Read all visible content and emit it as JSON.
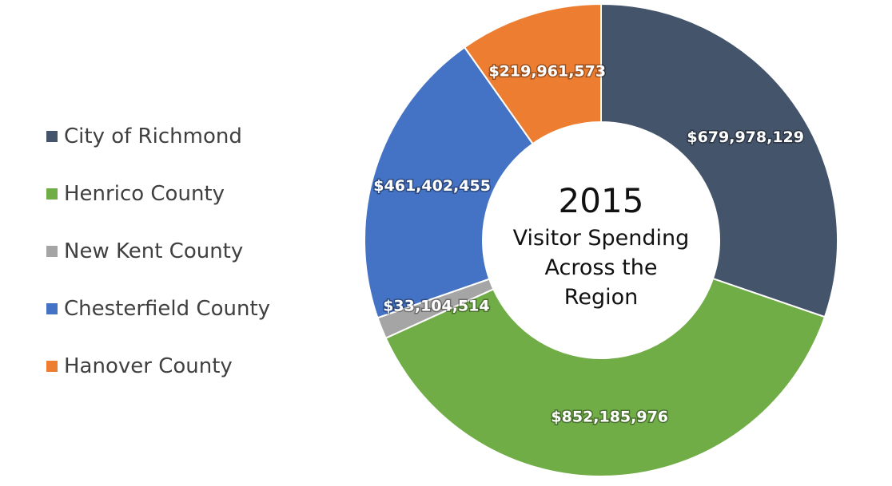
{
  "chart_data": {
    "type": "pie",
    "donut": true,
    "legend_position": "left",
    "center_title": "2015",
    "center_subtitle_lines": [
      "Visitor Spending",
      "Across the",
      "Region"
    ],
    "categories": [
      "City of Richmond",
      "Henrico County",
      "New Kent County",
      "Chesterfield County",
      "Hanover County"
    ],
    "values": [
      679978129,
      852185976,
      33104514,
      461402455,
      219961573
    ],
    "value_labels": [
      "$679,978,129",
      "$852,185,976",
      "$33,104,514",
      "$461,402,455",
      "$219,961,573"
    ],
    "colors": [
      "#44546A",
      "#70AD47",
      "#A5A5A5",
      "#4472C4",
      "#ED7D31"
    ]
  }
}
